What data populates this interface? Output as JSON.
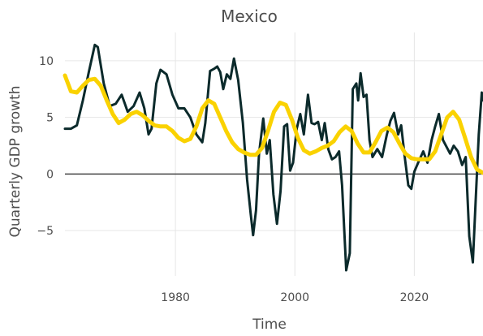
{
  "chart_data": {
    "type": "line",
    "title": "Mexico",
    "xlabel": "Time",
    "ylabel": "Quarterly GDP growth",
    "xlim": [
      1961.5,
      2031.5
    ],
    "ylim": [
      -9,
      12.5
    ],
    "x_ticks": [
      1980,
      2000,
      2020
    ],
    "x_tick_labels": [
      "1980",
      "2000",
      "2020"
    ],
    "y_ticks": [
      -5,
      0,
      5,
      10
    ],
    "y_tick_labels": [
      "−5",
      "0",
      "5",
      "10"
    ],
    "grid": true,
    "zero_line": true,
    "legend": "none",
    "series": [
      {
        "color": "#0b2a2b",
        "points": [
          [
            1961.5,
            4.0
          ],
          [
            1962.5,
            4.0
          ],
          [
            1963.5,
            4.3
          ],
          [
            1964.5,
            6.5
          ],
          [
            1965.5,
            9.0
          ],
          [
            1966.5,
            11.4
          ],
          [
            1967.0,
            11.2
          ],
          [
            1968.0,
            8.0
          ],
          [
            1969.0,
            6.0
          ],
          [
            1970.0,
            6.2
          ],
          [
            1971.0,
            7.0
          ],
          [
            1972.0,
            5.5
          ],
          [
            1973.0,
            6.0
          ],
          [
            1974.0,
            7.2
          ],
          [
            1974.8,
            5.8
          ],
          [
            1975.5,
            3.5
          ],
          [
            1976.0,
            4.0
          ],
          [
            1976.8,
            8.0
          ],
          [
            1977.5,
            9.2
          ],
          [
            1978.5,
            8.8
          ],
          [
            1979.5,
            7.0
          ],
          [
            1980.5,
            5.8
          ],
          [
            1981.5,
            5.8
          ],
          [
            1982.5,
            5.0
          ],
          [
            1983.5,
            3.5
          ],
          [
            1984.5,
            2.8
          ],
          [
            1985.0,
            4.5
          ],
          [
            1985.8,
            9.1
          ],
          [
            1986.5,
            9.3
          ],
          [
            1987.0,
            9.5
          ],
          [
            1987.5,
            9.0
          ],
          [
            1988.0,
            7.5
          ],
          [
            1988.6,
            8.8
          ],
          [
            1989.2,
            8.4
          ],
          [
            1989.8,
            10.2
          ],
          [
            1990.5,
            8.3
          ],
          [
            1991.3,
            4.5
          ],
          [
            1992.0,
            -0.5
          ],
          [
            1992.6,
            -3.5
          ],
          [
            1993.0,
            -5.4
          ],
          [
            1993.5,
            -3.2
          ],
          [
            1994.0,
            1.8
          ],
          [
            1994.7,
            4.9
          ],
          [
            1995.3,
            1.8
          ],
          [
            1995.8,
            3.0
          ],
          [
            1996.4,
            -1.8
          ],
          [
            1997.0,
            -4.4
          ],
          [
            1997.6,
            -1.5
          ],
          [
            1998.2,
            4.2
          ],
          [
            1998.7,
            4.4
          ],
          [
            1999.2,
            0.3
          ],
          [
            1999.7,
            1.0
          ],
          [
            2000.3,
            4.0
          ],
          [
            2000.9,
            5.3
          ],
          [
            2001.5,
            3.5
          ],
          [
            2002.2,
            7.0
          ],
          [
            2002.8,
            4.5
          ],
          [
            2003.3,
            4.4
          ],
          [
            2003.9,
            4.6
          ],
          [
            2004.5,
            3.0
          ],
          [
            2005.0,
            4.5
          ],
          [
            2005.6,
            2.2
          ],
          [
            2006.2,
            1.3
          ],
          [
            2006.8,
            1.5
          ],
          [
            2007.4,
            2.0
          ],
          [
            2007.9,
            -1.0
          ],
          [
            2008.6,
            -8.5
          ],
          [
            2009.2,
            -7.0
          ],
          [
            2009.7,
            7.5
          ],
          [
            2010.3,
            8.0
          ],
          [
            2010.6,
            6.5
          ],
          [
            2011.0,
            8.9
          ],
          [
            2011.5,
            6.8
          ],
          [
            2012.0,
            7.0
          ],
          [
            2012.5,
            3.0
          ],
          [
            2013.0,
            1.5
          ],
          [
            2013.8,
            2.2
          ],
          [
            2014.6,
            1.5
          ],
          [
            2015.4,
            3.5
          ],
          [
            2016.0,
            4.7
          ],
          [
            2016.6,
            5.4
          ],
          [
            2017.3,
            3.5
          ],
          [
            2017.8,
            4.3
          ],
          [
            2018.4,
            1.5
          ],
          [
            2019.0,
            -1.0
          ],
          [
            2019.5,
            -1.3
          ],
          [
            2020.0,
            0.2
          ],
          [
            2020.8,
            1.2
          ],
          [
            2021.5,
            2.0
          ],
          [
            2022.2,
            1.0
          ],
          [
            2022.9,
            3.0
          ],
          [
            2023.5,
            4.2
          ],
          [
            2024.1,
            5.3
          ],
          [
            2024.8,
            3.0
          ],
          [
            2025.4,
            2.4
          ],
          [
            2026.0,
            1.8
          ],
          [
            2026.6,
            2.5
          ],
          [
            2027.3,
            2.0
          ],
          [
            2028.0,
            0.8
          ],
          [
            2028.6,
            1.5
          ],
          [
            2029.2,
            -5.5
          ],
          [
            2029.8,
            -7.8
          ],
          [
            2030.3,
            -2.0
          ],
          [
            2030.8,
            3.5
          ],
          [
            2031.3,
            7.2
          ],
          [
            2031.5,
            6.5
          ]
        ]
      },
      {
        "color": "#fad200",
        "points": [
          [
            1961.5,
            8.7
          ],
          [
            1962.5,
            7.3
          ],
          [
            1963.5,
            7.2
          ],
          [
            1964.5,
            7.8
          ],
          [
            1965.5,
            8.3
          ],
          [
            1966.5,
            8.4
          ],
          [
            1967.5,
            7.8
          ],
          [
            1968.5,
            6.5
          ],
          [
            1969.5,
            5.3
          ],
          [
            1970.5,
            4.5
          ],
          [
            1971.5,
            4.8
          ],
          [
            1972.5,
            5.3
          ],
          [
            1973.5,
            5.5
          ],
          [
            1974.5,
            5.2
          ],
          [
            1975.5,
            4.7
          ],
          [
            1976.5,
            4.3
          ],
          [
            1977.5,
            4.2
          ],
          [
            1978.5,
            4.2
          ],
          [
            1979.5,
            3.8
          ],
          [
            1980.5,
            3.2
          ],
          [
            1981.5,
            2.9
          ],
          [
            1982.5,
            3.1
          ],
          [
            1983.5,
            4.2
          ],
          [
            1984.5,
            5.8
          ],
          [
            1985.5,
            6.5
          ],
          [
            1986.5,
            6.2
          ],
          [
            1987.5,
            5.0
          ],
          [
            1988.5,
            3.8
          ],
          [
            1989.5,
            2.8
          ],
          [
            1990.5,
            2.2
          ],
          [
            1991.5,
            1.9
          ],
          [
            1992.5,
            1.7
          ],
          [
            1993.5,
            1.7
          ],
          [
            1994.5,
            2.3
          ],
          [
            1995.5,
            3.8
          ],
          [
            1996.5,
            5.5
          ],
          [
            1997.5,
            6.3
          ],
          [
            1998.5,
            6.1
          ],
          [
            1999.5,
            4.8
          ],
          [
            2000.5,
            3.2
          ],
          [
            2001.5,
            2.1
          ],
          [
            2002.5,
            1.8
          ],
          [
            2003.5,
            2.0
          ],
          [
            2004.5,
            2.3
          ],
          [
            2005.5,
            2.5
          ],
          [
            2006.5,
            2.9
          ],
          [
            2007.5,
            3.7
          ],
          [
            2008.5,
            4.2
          ],
          [
            2009.5,
            3.8
          ],
          [
            2010.5,
            2.7
          ],
          [
            2011.5,
            1.9
          ],
          [
            2012.5,
            1.9
          ],
          [
            2013.5,
            2.8
          ],
          [
            2014.5,
            3.8
          ],
          [
            2015.5,
            4.1
          ],
          [
            2016.5,
            3.7
          ],
          [
            2017.5,
            2.7
          ],
          [
            2018.5,
            1.8
          ],
          [
            2019.5,
            1.4
          ],
          [
            2020.5,
            1.3
          ],
          [
            2021.5,
            1.3
          ],
          [
            2022.5,
            1.3
          ],
          [
            2023.5,
            2.0
          ],
          [
            2024.5,
            3.5
          ],
          [
            2025.5,
            5.0
          ],
          [
            2026.5,
            5.5
          ],
          [
            2027.5,
            4.8
          ],
          [
            2028.5,
            3.2
          ],
          [
            2029.5,
            1.5
          ],
          [
            2030.5,
            0.4
          ],
          [
            2031.5,
            0.1
          ]
        ]
      }
    ]
  }
}
